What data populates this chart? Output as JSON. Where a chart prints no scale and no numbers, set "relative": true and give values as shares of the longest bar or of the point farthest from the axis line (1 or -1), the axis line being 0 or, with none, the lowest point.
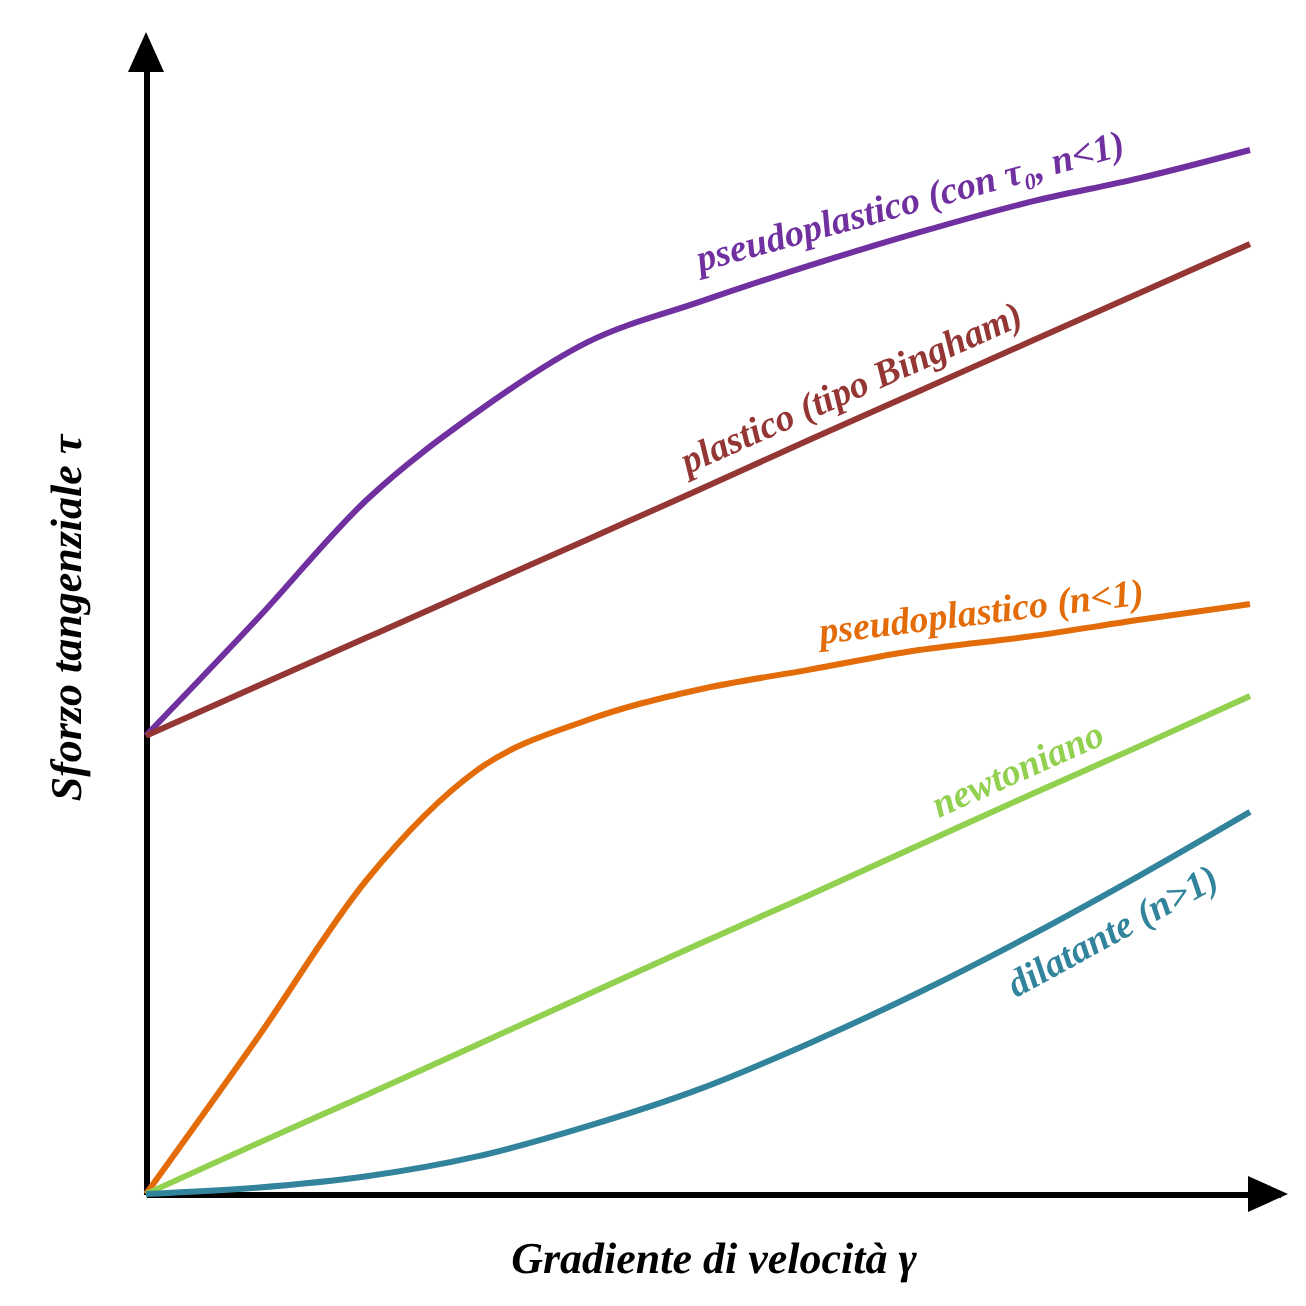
{
  "chart_data": {
    "type": "line",
    "relative": true,
    "xlabel": "Gradiente di velocità γ",
    "ylabel": "Sforzo tangenziale τ",
    "categories": [
      null,
      null,
      null,
      null,
      null,
      null,
      null,
      null,
      null,
      null,
      null
    ],
    "legend": false,
    "grid": false,
    "tick_labels": false,
    "series": [
      {
        "name": "pseudoplastico (con τ₀, n<1)",
        "color": "#7030a0",
        "values": [
          0.439,
          0.55,
          0.665,
          0.749,
          0.816,
          0.854,
          0.889,
          0.921,
          0.95,
          0.973,
          1
        ]
      },
      {
        "name": "plastico (tipo Bingham)",
        "color": "#943634",
        "values": [
          0.439,
          0.486,
          0.533,
          0.58,
          0.627,
          0.674,
          0.722,
          0.769,
          0.816,
          0.863,
          0.91
        ]
      },
      {
        "name": "pseudoplastico (n<1)",
        "color": "#e36c09",
        "values": [
          0,
          0.148,
          0.301,
          0.406,
          0.454,
          0.483,
          0.502,
          0.521,
          0.534,
          0.55,
          0.565
        ]
      },
      {
        "name": "newtoniano",
        "color": "#92d050",
        "values": [
          0,
          0.048,
          0.095,
          0.143,
          0.191,
          0.239,
          0.286,
          0.334,
          0.382,
          0.429,
          0.477
        ]
      },
      {
        "name": "dilatante (n>1)",
        "color": "#31849b",
        "values": [
          0,
          0.006,
          0.017,
          0.036,
          0.065,
          0.1,
          0.144,
          0.193,
          0.247,
          0.305,
          0.366
        ]
      }
    ]
  }
}
